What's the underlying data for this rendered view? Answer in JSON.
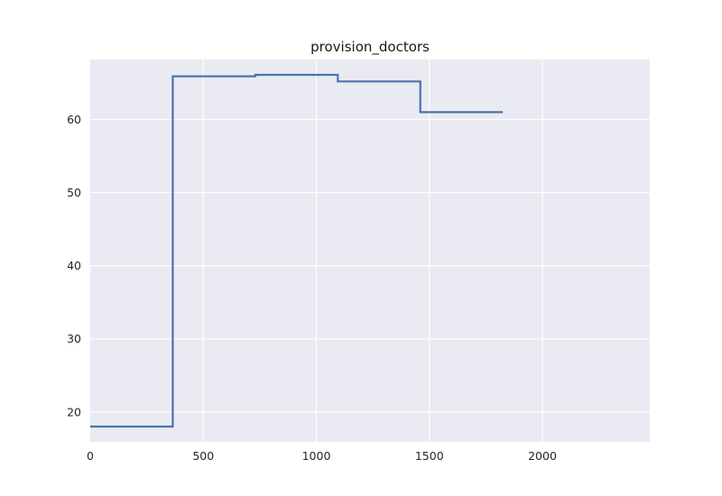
{
  "chart_data": {
    "type": "line",
    "title": "provision_doctors",
    "xlabel": "",
    "ylabel": "",
    "xlim": [
      0,
      2475
    ],
    "ylim": [
      15.9,
      68.2
    ],
    "xticks": [
      0,
      500,
      1000,
      1500,
      2000
    ],
    "yticks": [
      20,
      30,
      40,
      50,
      60
    ],
    "grid": true,
    "style": "step",
    "colors": {
      "background": "#eaeaf2",
      "grid": "#ffffff",
      "line": "#4c72b0"
    },
    "series": [
      {
        "x": [
          0,
          365,
          365,
          730,
          730,
          1095,
          1095,
          1460,
          1460,
          1825
        ],
        "values": [
          18.0,
          18.0,
          65.9,
          65.9,
          66.1,
          66.1,
          65.2,
          65.2,
          61.0,
          61.0
        ]
      }
    ]
  }
}
